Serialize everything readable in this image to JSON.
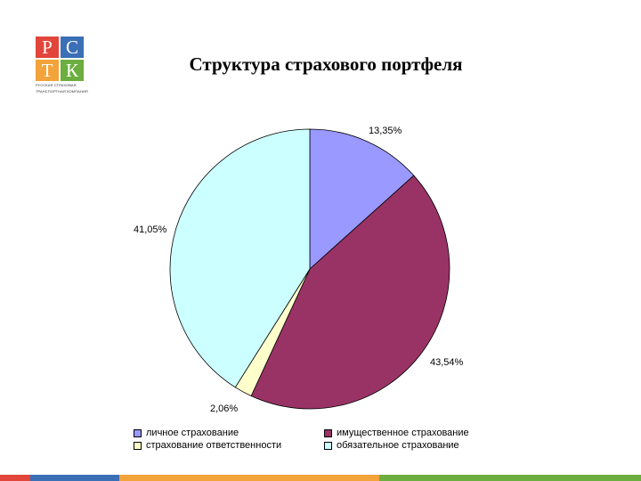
{
  "logo": {
    "letters": [
      "Р",
      "С",
      "Т",
      "К"
    ],
    "colors": [
      "#e2453a",
      "#3b6fb6",
      "#f2a33a",
      "#6cae3f"
    ],
    "caption_lines": [
      "РУССКАЯ СТРАХОВАЯ",
      "ТРАНСПОРТНАЯ КОМПАНИЯ"
    ]
  },
  "title": "Структура страхового портфеля",
  "chart_data": {
    "type": "pie",
    "title": "Структура страхового портфеля",
    "start_angle_deg": 0,
    "direction": "clockwise",
    "slices": [
      {
        "label": "личное страхование",
        "value": 13.35,
        "value_label": "13,35%",
        "color": "#9999ff"
      },
      {
        "label": "имущественное страхование",
        "value": 43.54,
        "value_label": "43,54%",
        "color": "#993366"
      },
      {
        "label": "страхование ответственности",
        "value": 2.06,
        "value_label": "2,06%",
        "color": "#ffffcc"
      },
      {
        "label": "обязательное страхование",
        "value": 41.05,
        "value_label": "41,05%",
        "color": "#ccffff"
      }
    ],
    "legend_position": "bottom"
  },
  "bottom_bar_colors": [
    "#e2453a",
    "#3b6fb6",
    "#f2a33a",
    "#6cae3f"
  ]
}
